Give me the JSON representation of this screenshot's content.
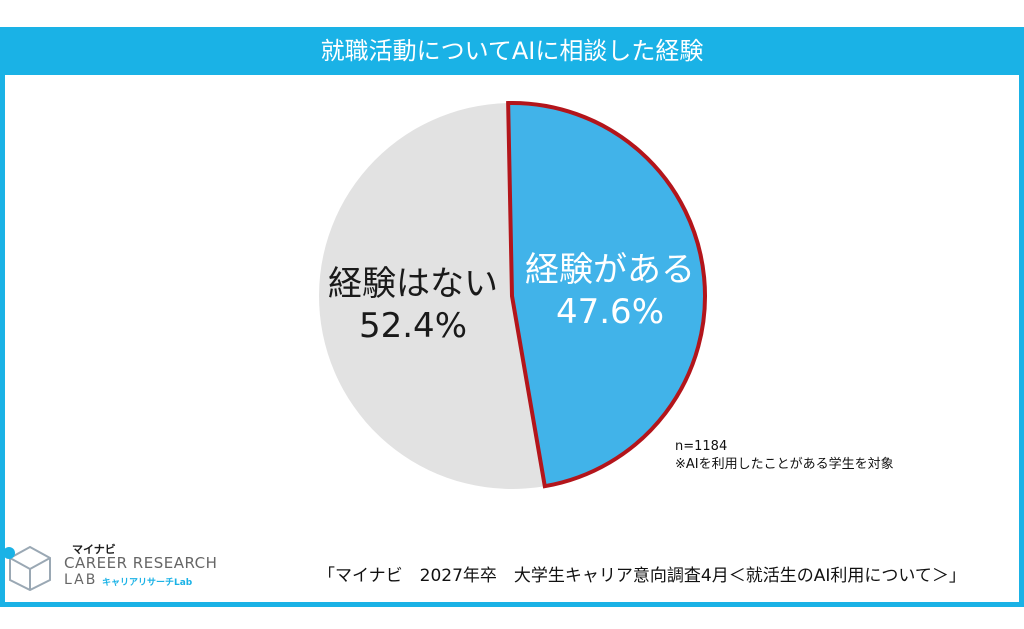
{
  "chart_data": {
    "type": "pie",
    "title": "就職活動についてAIに相談した経験",
    "slices": [
      {
        "label": "経験がある",
        "value": 47.6,
        "display": "47.6%",
        "color": "#41b3e9",
        "highlighted": true
      },
      {
        "label": "経験はない",
        "value": 52.4,
        "display": "52.4%",
        "color": "#e2e2e2",
        "highlighted": false
      }
    ],
    "note_lines": [
      "n=1184",
      "※AIを利用したことがある学生を対象"
    ],
    "source": "「マイナビ　2027年卒　大学生キャリア意向調査4月＜就活生のAI利用について＞」"
  },
  "logo": {
    "brand": "マイナビ",
    "line1": "CAREER RESEARCH",
    "line2": "LAB",
    "sub": "キャリアリサーチLab"
  },
  "colors": {
    "accent": "#1ab2e6",
    "highlight_border": "#b3151b"
  }
}
